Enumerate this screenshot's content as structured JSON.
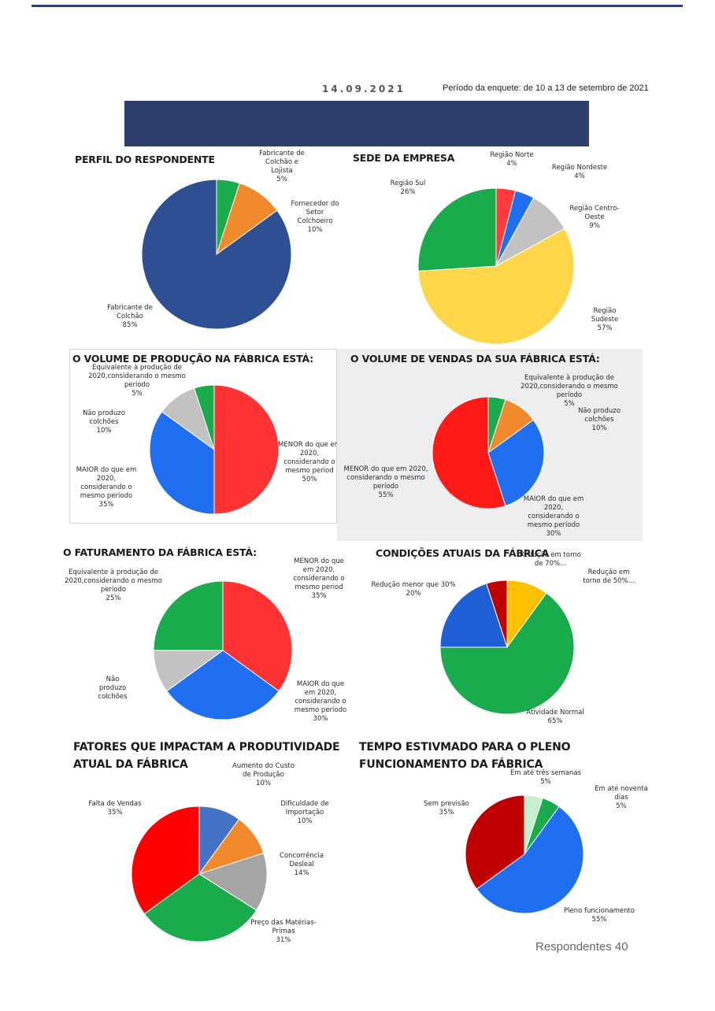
{
  "header": {
    "date": "14.09.2021",
    "period": "Período da enquete: de 10 a 13  de setembro de 2021"
  },
  "footer": {
    "respondents": "Respondentes 40"
  },
  "colors": {
    "brand_navy": "#2e3f6e",
    "green": "#1aab4c",
    "orange": "#f08a2c",
    "navy": "#2e4f91",
    "red": "#ff3333",
    "blue": "#1f6ff0",
    "gray": "#c2c2c2",
    "yellow": "#ffd54a",
    "darkred": "#c00000"
  },
  "chart_data": [
    {
      "type": "pie",
      "title": "PERFIL DO RESPONDENTE",
      "labels": [
        "Fabricante de Colchão e Lojista",
        "Fornecedor do Setor Colchoeiro",
        "Fabricante de Colchão"
      ],
      "values": [
        5,
        10,
        85
      ],
      "colors": [
        "#1aab4c",
        "#f08a2c",
        "#2e4f91"
      ],
      "label_texts": [
        "Fabricante de\nColchão e\nLojista\n5%",
        "Fornecedor do\nSetor\nColchoeiro\n10%",
        "Fabricante de\nColchão\n85%"
      ]
    },
    {
      "type": "pie",
      "title": "SEDE DA EMPRESA",
      "labels": [
        "Região Norte",
        "Região Nordeste",
        "Região Centro-Oeste",
        "Região Sudeste",
        "Região Sul"
      ],
      "values": [
        4,
        4,
        9,
        57,
        26
      ],
      "colors": [
        "#ff3b3b",
        "#1f6ff0",
        "#c2c2c2",
        "#ffd54a",
        "#1aab4c"
      ],
      "label_texts": [
        "Região Norte\n4%",
        "Região Nordeste\n4%",
        "Região Centro-\nOeste\n9%",
        "Região\nSudeste\n57%",
        "Região Sul\n26%"
      ]
    },
    {
      "type": "pie",
      "title": "O VOLUME DE PRODUÇÃO NA FÁBRICA ESTÁ:",
      "labels": [
        "MENOR do que em 2020, considerando o mesmo period",
        "MAIOR do que em 2020, considerando o mesmo período",
        "Não produzo colchões",
        "Equivalente à produção de 2020,considerando o mesmo período"
      ],
      "values": [
        50,
        35,
        10,
        5
      ],
      "colors": [
        "#ff3333",
        "#1f6ff0",
        "#c2c2c2",
        "#1aab4c"
      ],
      "label_texts": [
        "MENOR do que em\n2020,\nconsiderando o\nmesmo period\n50%",
        "MAIOR do que em\n2020,\nconsiderando o\nmesmo período\n35%",
        "Não produzo\ncolchões\n10%",
        "Equivalente à produção de\n2020,considerando o mesmo período\n5%"
      ]
    },
    {
      "type": "pie",
      "title": "O VOLUME DE VENDAS DA SUA FÁBRICA ESTÁ:",
      "labels": [
        "Equivalente à produção de 2020,considerando o mesmo período",
        "Não produzo colchões",
        "MAIOR do que em 2020, considerando o mesmo período",
        "MENOR do que em 2020, considerando o mesmo período"
      ],
      "values": [
        5,
        10,
        30,
        55
      ],
      "colors": [
        "#1aab4c",
        "#f08a2c",
        "#1f6ff0",
        "#ff1a1a"
      ],
      "label_texts": [
        "Equivalente à produção de\n2020,considerando o mesmo período\n5%",
        "Não produzo\ncolchões\n10%",
        "MAIOR do que em\n2020,\nconsiderando o\nmesmo período\n30%",
        "MENOR do que em 2020,\nconsiderando o mesmo período\n55%"
      ]
    },
    {
      "type": "pie",
      "title": "O FATURAMENTO  DA FÁBRICA ESTÁ:",
      "labels": [
        "MENOR do que em 2020, considerando o mesmo period",
        "MAIOR do que em 2020, considerando o mesmo período",
        "Não produzo colchões",
        "Equivalente à produção de 2020,considerando o mesmo período"
      ],
      "values": [
        35,
        30,
        10,
        25
      ],
      "colors": [
        "#ff3333",
        "#1f6ff0",
        "#c2c2c2",
        "#1aab4c"
      ],
      "label_texts": [
        "MENOR do que\nem 2020,\nconsiderando o\nmesmo period\n35%",
        "MAIOR do que\nem 2020,\nconsiderando o\nmesmo período\n30%",
        "Não\nproduzo\ncolchões",
        "Equivalente à produção de\n2020,considerando o mesmo\nperíodo\n25%"
      ]
    },
    {
      "type": "pie",
      "title": "CONDIÇÕES ATUAIS DA FÁBRICA",
      "labels": [
        "Redução em torno de 50%...",
        "Atividade Normal",
        "Redução menor que 30%",
        "Redução em torno de 70%..."
      ],
      "values": [
        10,
        65,
        20,
        5
      ],
      "colors": [
        "#ffc000",
        "#1aab4c",
        "#1f5fd6",
        "#c00000"
      ],
      "label_texts": [
        "Redução em\ntorno de 50%...",
        "Atividade Normal\n65%",
        "Redução menor que 30%\n20%",
        "Redução em torno\nde 70%..."
      ]
    },
    {
      "type": "pie",
      "title": "FATORES QUE IMPACTAM A PRODUTIVIDADE ATUAL DA FÁBRICA",
      "labels": [
        "Aumento do Custo de Produção",
        "Dificuldade de Importação",
        "Concorrência Desleal",
        "Preço das Matérias-Primas",
        "Falta de Vendas"
      ],
      "values": [
        10,
        10,
        14,
        31,
        35
      ],
      "colors": [
        "#4472c4",
        "#f08a2c",
        "#a5a5a5",
        "#1aab4c",
        "#ff0000"
      ],
      "label_texts": [
        "Aumento  do Custo\nde Produção\n10%",
        "Dificuldade de\nImportação\n10%",
        "Concorrência\nDesleal\n14%",
        "Preço das  Matérias-\nPrimas\n31%",
        "Falta de Vendas\n35%"
      ]
    },
    {
      "type": "pie",
      "title": "TEMPO ESTIVMADO PARA O PLENO FUNCIONAMENTO DA FÁBRICA",
      "labels": [
        "Em até três semanas",
        "Em até noventa dias",
        "Pleno funcionamento",
        "Sem previsão"
      ],
      "values": [
        5,
        5,
        55,
        35
      ],
      "colors": [
        "#c6efce",
        "#1aab4c",
        "#1f6ff0",
        "#c00000"
      ],
      "label_texts": [
        "Em até três semanas\n5%",
        "Em até noventa\ndias\n5%",
        "Pleno funcionamento\n55%",
        "Sem previsão\n35%"
      ]
    }
  ]
}
